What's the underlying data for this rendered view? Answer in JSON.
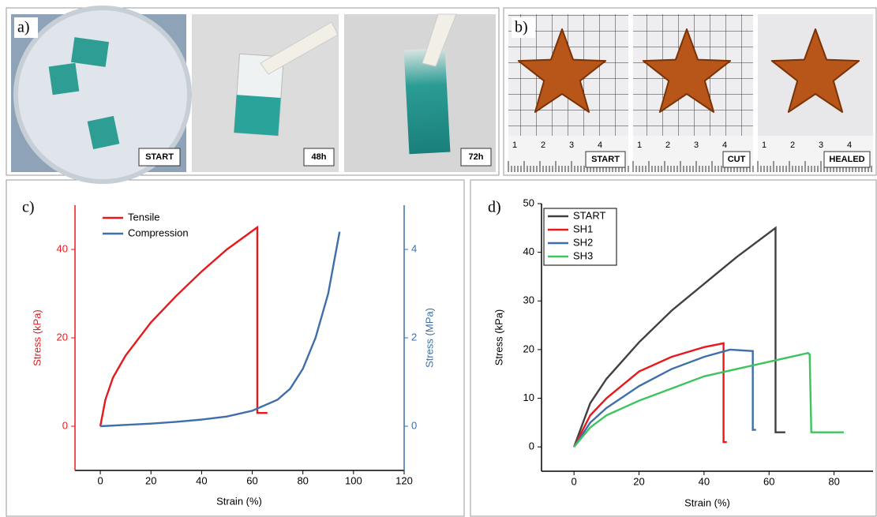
{
  "photo_panels": [
    {
      "tag": "a)",
      "photos": [
        {
          "label": "START"
        },
        {
          "label": "48h"
        },
        {
          "label": "72h"
        }
      ]
    },
    {
      "tag": "b)",
      "photos": [
        {
          "label": "START",
          "ruler": [
            "1",
            "2",
            "3",
            "4"
          ]
        },
        {
          "label": "CUT",
          "ruler": [
            "1",
            "2",
            "3",
            "4"
          ]
        },
        {
          "label": "HEALED",
          "ruler": [
            "1",
            "2",
            "3",
            "4"
          ]
        }
      ]
    }
  ],
  "chart_data": [
    {
      "type": "line",
      "panel_label": "c)",
      "xlabel": "Strain (%)",
      "ylabel": "Stress (kPa)",
      "y2label": "Stress (MPa)",
      "xlim": [
        -10,
        120
      ],
      "xticks": [
        0,
        20,
        40,
        60,
        80,
        100,
        120
      ],
      "ylim": [
        -10,
        50
      ],
      "yticks": [
        0,
        20,
        40
      ],
      "y2lim": [
        -1,
        5
      ],
      "y2ticks": [
        0,
        2,
        4
      ],
      "y_axis_color": "#e8191c",
      "y2_axis_color": "#3e6fa8",
      "legend": "upper left",
      "legend_box": false,
      "series": [
        {
          "name": "Tensile",
          "color": "#e8191c",
          "x": [
            0,
            2,
            5,
            10,
            20,
            30,
            40,
            50,
            62,
            62,
            63,
            66
          ],
          "values": [
            0,
            6,
            11,
            16,
            23.5,
            29.5,
            35,
            40,
            45,
            3,
            3,
            3
          ]
        },
        {
          "name": "Compression",
          "color": "#3e6fa8",
          "axis": "y2",
          "x": [
            0,
            10,
            20,
            30,
            40,
            50,
            60,
            70,
            75,
            80,
            85,
            90,
            94.5
          ],
          "values": [
            0,
            0.03,
            0.06,
            0.1,
            0.15,
            0.22,
            0.35,
            0.6,
            0.85,
            1.3,
            2,
            3,
            4.4
          ]
        }
      ]
    },
    {
      "type": "line",
      "panel_label": "d)",
      "xlabel": "Strain (%)",
      "ylabel": "Stress (kPa)",
      "xlim": [
        -10,
        92
      ],
      "xticks": [
        0,
        20,
        40,
        60,
        80
      ],
      "ylim": [
        -5,
        50
      ],
      "yticks": [
        0,
        10,
        20,
        30,
        40,
        50
      ],
      "y_axis_color": "#000000",
      "legend": "upper left",
      "legend_box": true,
      "series": [
        {
          "name": "START",
          "color": "#404040",
          "x": [
            0,
            5,
            10,
            20,
            30,
            40,
            50,
            62,
            62,
            63,
            65
          ],
          "values": [
            0,
            9,
            14,
            21.5,
            28,
            33.5,
            39,
            45,
            3,
            3,
            3
          ]
        },
        {
          "name": "SH1",
          "color": "#e8191c",
          "x": [
            0,
            5,
            10,
            20,
            30,
            40,
            46,
            46,
            47
          ],
          "values": [
            0,
            6.5,
            10,
            15.5,
            18.5,
            20.5,
            21.3,
            1,
            1
          ]
        },
        {
          "name": "SH2",
          "color": "#3e6fa8",
          "x": [
            0,
            5,
            10,
            20,
            30,
            40,
            48,
            55,
            55,
            56
          ],
          "values": [
            0,
            5,
            8,
            12.5,
            16,
            18.5,
            20,
            19.7,
            3.5,
            3.5
          ]
        },
        {
          "name": "SH3",
          "color": "#3ec45e",
          "x": [
            0,
            5,
            10,
            20,
            30,
            40,
            50,
            60,
            72,
            72.5,
            73,
            83
          ],
          "values": [
            0,
            4,
            6.5,
            9.5,
            12,
            14.5,
            16,
            17.5,
            19.3,
            19,
            3,
            3
          ]
        }
      ]
    }
  ]
}
